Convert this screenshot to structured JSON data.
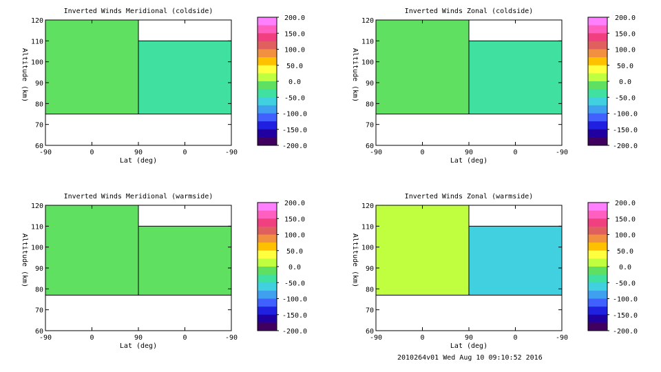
{
  "footer": "2010264v01 Wed Aug 10 09:10:52 2016",
  "colorbar": {
    "ticks": [
      "200.0",
      "150.0",
      "100.0",
      "50.0",
      "0.0",
      "-50.0",
      "-100.0",
      "-150.0",
      "-200.0"
    ],
    "colors": [
      "#ff80ff",
      "#ff60c0",
      "#f04080",
      "#e06060",
      "#f09040",
      "#ffc000",
      "#ffff40",
      "#c0ff40",
      "#60e060",
      "#40e0a0",
      "#40d0e0",
      "#40a0f0",
      "#4060ff",
      "#2020e0",
      "#2000a0",
      "#400060"
    ]
  },
  "chart_data": [
    {
      "type": "heatmap",
      "title": "Inverted Winds Meridional (coldside)",
      "xlabel": "Lat (deg)",
      "ylabel": "Altitude (km)",
      "xticks": [
        "-90",
        "0",
        "90",
        "0",
        "-90"
      ],
      "yticks": [
        "120",
        "110",
        "100",
        "90",
        "80",
        "70",
        "60"
      ],
      "ylim": [
        60,
        120
      ],
      "clim": [
        -200,
        200
      ],
      "regions": [
        {
          "lat_from": -90,
          "lat_to": 90,
          "alt_from": 75,
          "alt_to": 120,
          "level": -10
        },
        {
          "lat_from": 90,
          "lat_to": -90,
          "alt_from": 75,
          "alt_to": 110,
          "level": -30
        }
      ]
    },
    {
      "type": "heatmap",
      "title": "Inverted Winds Zonal (coldside)",
      "xlabel": "Lat (deg)",
      "ylabel": "Altitude (km)",
      "xticks": [
        "-90",
        "0",
        "90",
        "0",
        "-90"
      ],
      "yticks": [
        "120",
        "110",
        "100",
        "90",
        "80",
        "70",
        "60"
      ],
      "ylim": [
        60,
        120
      ],
      "clim": [
        -200,
        200
      ],
      "regions": [
        {
          "lat_from": -90,
          "lat_to": 90,
          "alt_from": 75,
          "alt_to": 120,
          "level": 0
        },
        {
          "lat_from": 90,
          "lat_to": -90,
          "alt_from": 75,
          "alt_to": 110,
          "level": -40
        }
      ]
    },
    {
      "type": "heatmap",
      "title": "Inverted Winds Meridional (warmside)",
      "xlabel": "Lat (deg)",
      "ylabel": "Altitude (km)",
      "xticks": [
        "-90",
        "0",
        "90",
        "0",
        "-90"
      ],
      "yticks": [
        "120",
        "110",
        "100",
        "90",
        "80",
        "70",
        "60"
      ],
      "ylim": [
        60,
        120
      ],
      "clim": [
        -200,
        200
      ],
      "regions": [
        {
          "lat_from": -90,
          "lat_to": 90,
          "alt_from": 77,
          "alt_to": 120,
          "level": -20
        },
        {
          "lat_from": 90,
          "lat_to": -90,
          "alt_from": 77,
          "alt_to": 110,
          "level": -20
        }
      ]
    },
    {
      "type": "heatmap",
      "title": "Inverted Winds Zonal (warmside)",
      "xlabel": "Lat (deg)",
      "ylabel": "Altitude (km)",
      "xticks": [
        "-90",
        "0",
        "90",
        "0",
        "-90"
      ],
      "yticks": [
        "120",
        "110",
        "100",
        "90",
        "80",
        "70",
        "60"
      ],
      "ylim": [
        60,
        120
      ],
      "clim": [
        -200,
        200
      ],
      "regions": [
        {
          "lat_from": -90,
          "lat_to": 90,
          "alt_from": 77,
          "alt_to": 120,
          "level": 10
        },
        {
          "lat_from": 90,
          "lat_to": -90,
          "alt_from": 77,
          "alt_to": 110,
          "level": -50
        }
      ]
    }
  ]
}
